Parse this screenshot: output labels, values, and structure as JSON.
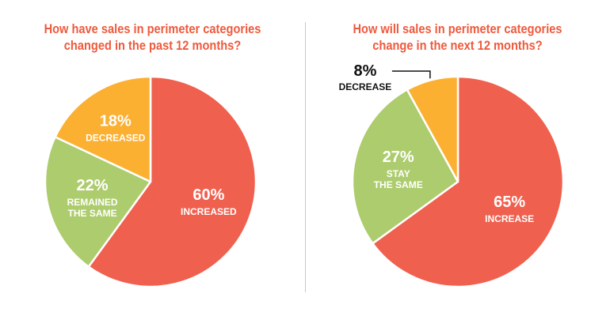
{
  "colors": {
    "title": "#ee5a3d",
    "red": "#f0604e",
    "green": "#adcc6d",
    "yellow": "#fbb032",
    "divider": "#c9c9c9"
  },
  "chart_data": [
    {
      "type": "pie",
      "title_lines": [
        "How have sales in perimeter categories",
        "changed in the past 12 months?"
      ],
      "slices": [
        {
          "label": "INCREASED",
          "label_lines": [
            "INCREASED"
          ],
          "value": 60,
          "display": "60%",
          "color": "#f0604e"
        },
        {
          "label": "REMAINED THE SAME",
          "label_lines": [
            "REMAINED",
            "THE SAME"
          ],
          "value": 22,
          "display": "22%",
          "color": "#adcc6d"
        },
        {
          "label": "DECREASED",
          "label_lines": [
            "DECREASED"
          ],
          "value": 18,
          "display": "18%",
          "color": "#fbb032"
        }
      ]
    },
    {
      "type": "pie",
      "title_lines": [
        "How will sales in perimeter categories",
        "change in the next 12 months?"
      ],
      "slices": [
        {
          "label": "INCREASE",
          "label_lines": [
            "INCREASE"
          ],
          "value": 65,
          "display": "65%",
          "color": "#f0604e"
        },
        {
          "label": "STAY THE SAME",
          "label_lines": [
            "STAY",
            "THE SAME"
          ],
          "value": 27,
          "display": "27%",
          "color": "#adcc6d"
        },
        {
          "label": "DECREASE",
          "label_lines": [
            "DECREASE"
          ],
          "value": 8,
          "display": "8%",
          "color": "#fbb032"
        }
      ]
    }
  ]
}
